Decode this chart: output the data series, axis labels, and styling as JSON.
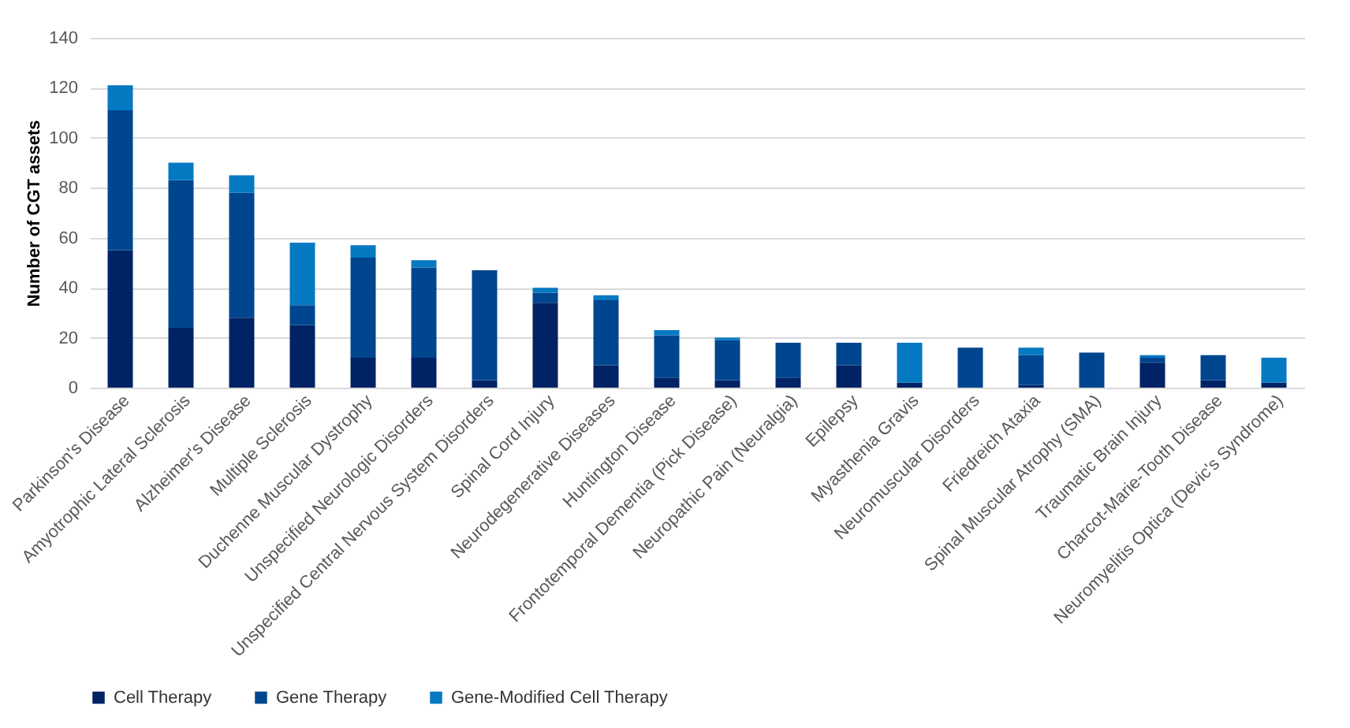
{
  "chart_data": {
    "type": "bar",
    "stacked": true,
    "ylabel": "Number of CGT assets",
    "categories": [
      "Parkinson's Disease",
      "Amyotrophic Lateral Sclerosis",
      "Alzheimer's Disease",
      "Multiple Sclerosis",
      "Duchenne Muscular Dystrophy",
      "Unspecified Neurologic Disorders",
      "Unspecified Central Nervous System Disorders",
      "Spinal Cord Injury",
      "Neurodegenerative Diseases",
      "Huntington Disease",
      "Frontotemporal Dementia (Pick Disease)",
      "Neuropathic Pain (Neuralgia)",
      "Epilepsy",
      "Myasthenia Gravis",
      "Neuromuscular Disorders",
      "Friedreich Ataxia",
      "Spinal Muscular Atrophy (SMA)",
      "Traumatic Brain Injury",
      "Charcot-Marie-Tooth Disease",
      "Neuromyelitis Optica (Devic's Syndrome)"
    ],
    "series": [
      {
        "name": "Cell Therapy",
        "color": "#002366",
        "values": [
          55,
          24,
          28,
          25,
          12,
          12,
          3,
          34,
          9,
          4,
          3,
          4,
          9,
          2,
          0,
          1,
          0,
          10,
          3,
          2
        ]
      },
      {
        "name": "Gene Therapy",
        "color": "#00468f",
        "values": [
          56,
          59,
          50,
          8,
          40,
          36,
          44,
          4,
          26,
          17,
          16,
          14,
          9,
          0,
          16,
          12,
          14,
          2,
          10,
          0
        ]
      },
      {
        "name": "Gene-Modified Cell Therapy",
        "color": "#0579c2",
        "values": [
          10,
          7,
          7,
          25,
          5,
          3,
          0,
          2,
          2,
          2,
          1,
          0,
          0,
          16,
          0,
          3,
          0,
          1,
          0,
          10
        ]
      }
    ],
    "ylim": [
      0,
      140
    ],
    "yticks": [
      0,
      20,
      40,
      60,
      80,
      100,
      120,
      140
    ],
    "grid": "y",
    "legend": "bottom"
  }
}
